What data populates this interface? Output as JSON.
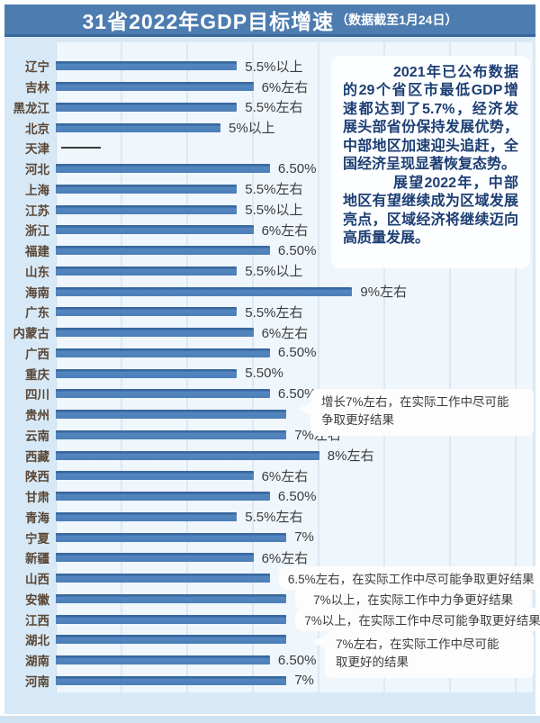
{
  "title": {
    "main": "31省2022年GDP目标增速",
    "sub": "（数据截至1月24日）"
  },
  "colors": {
    "titlebar": "#4d7cb0",
    "chart_background": "#d7e9f6",
    "plot_background": "#eff6fc",
    "bar": "#4c7eb8",
    "province_label": "#5a4636",
    "infobox_text": "#1c3e74"
  },
  "infobox": {
    "paragraphs": [
      "2021年已公布数据的29个省区市最低GDP增速都达到了5.7%，经济发展头部省份保持发展优势，中部地区加速迎头追赶，全国经济呈现显著恢复态势。",
      "展望2022年，中部地区有望继续成为区域发展亮点，区域经济将继续迈向高质量发展。"
    ]
  },
  "callouts": {
    "guizhou": {
      "line1": "增长7%左右，在实际工作中尽可能",
      "line2": "争取更好结果"
    },
    "hubei": {
      "line1": "7%左右，在实际工作中尽可能",
      "line2": "取更好的结果"
    }
  },
  "chart_data": {
    "type": "bar",
    "orientation": "horizontal",
    "title": "31省2022年GDP目标增速（数据截至1月24日）",
    "unit": "%",
    "xlim": [
      0,
      9.5
    ],
    "grid": "vertical",
    "rows": [
      {
        "province": "辽宁",
        "value": 5.5,
        "label": "5.5%以上"
      },
      {
        "province": "吉林",
        "value": 6,
        "label": "6%左右"
      },
      {
        "province": "黑龙江",
        "value": 5.5,
        "label": "5.5%左右"
      },
      {
        "province": "北京",
        "value": 5,
        "label": "5%以上"
      },
      {
        "province": "天津",
        "value": null,
        "label": "",
        "no_target": true
      },
      {
        "province": "河北",
        "value": 6.5,
        "label": "6.50%"
      },
      {
        "province": "上海",
        "value": 5.5,
        "label": "5.5%左右"
      },
      {
        "province": "江苏",
        "value": 5.5,
        "label": "5.5%以上"
      },
      {
        "province": "浙江",
        "value": 6,
        "label": "6%左右"
      },
      {
        "province": "福建",
        "value": 6.5,
        "label": "6.50%"
      },
      {
        "province": "山东",
        "value": 5.5,
        "label": "5.5%以上"
      },
      {
        "province": "海南",
        "value": 9,
        "label": "9%左右"
      },
      {
        "province": "广东",
        "value": 5.5,
        "label": "5.5%左右"
      },
      {
        "province": "内蒙古",
        "value": 6,
        "label": "6%左右"
      },
      {
        "province": "广西",
        "value": 6.5,
        "label": "6.50%"
      },
      {
        "province": "重庆",
        "value": 5.5,
        "label": "5.50%"
      },
      {
        "province": "四川",
        "value": 6.5,
        "label": "6.50%"
      },
      {
        "province": "贵州",
        "value": 7,
        "label": "",
        "callout": "增长7%左右，在实际工作中尽可能争取更好结果"
      },
      {
        "province": "云南",
        "value": 7,
        "label": "7%左右"
      },
      {
        "province": "西藏",
        "value": 8,
        "label": "8%左右"
      },
      {
        "province": "陕西",
        "value": 6,
        "label": "6%左右"
      },
      {
        "province": "甘肃",
        "value": 6.5,
        "label": "6.50%"
      },
      {
        "province": "青海",
        "value": 5.5,
        "label": "5.5%左右"
      },
      {
        "province": "宁夏",
        "value": 7,
        "label": "7%"
      },
      {
        "province": "新疆",
        "value": 6,
        "label": "6%左右"
      },
      {
        "province": "山西",
        "value": 6.5,
        "label": "6.5%左右，在实际工作中尽可能争取更好结果",
        "boxed": true
      },
      {
        "province": "安徽",
        "value": 7,
        "label": "7%以上，在实际工作中力争更好结果",
        "boxed": true
      },
      {
        "province": "江西",
        "value": 7,
        "label": "7%以上，在实际工作中尽可能争取更好结果",
        "boxed": true
      },
      {
        "province": "湖北",
        "value": 7,
        "label": "",
        "callout": "7%左右，在实际工作中尽可能取更好的结果"
      },
      {
        "province": "湖南",
        "value": 6.5,
        "label": "6.50%"
      },
      {
        "province": "河南",
        "value": 7,
        "label": "7%"
      }
    ]
  }
}
